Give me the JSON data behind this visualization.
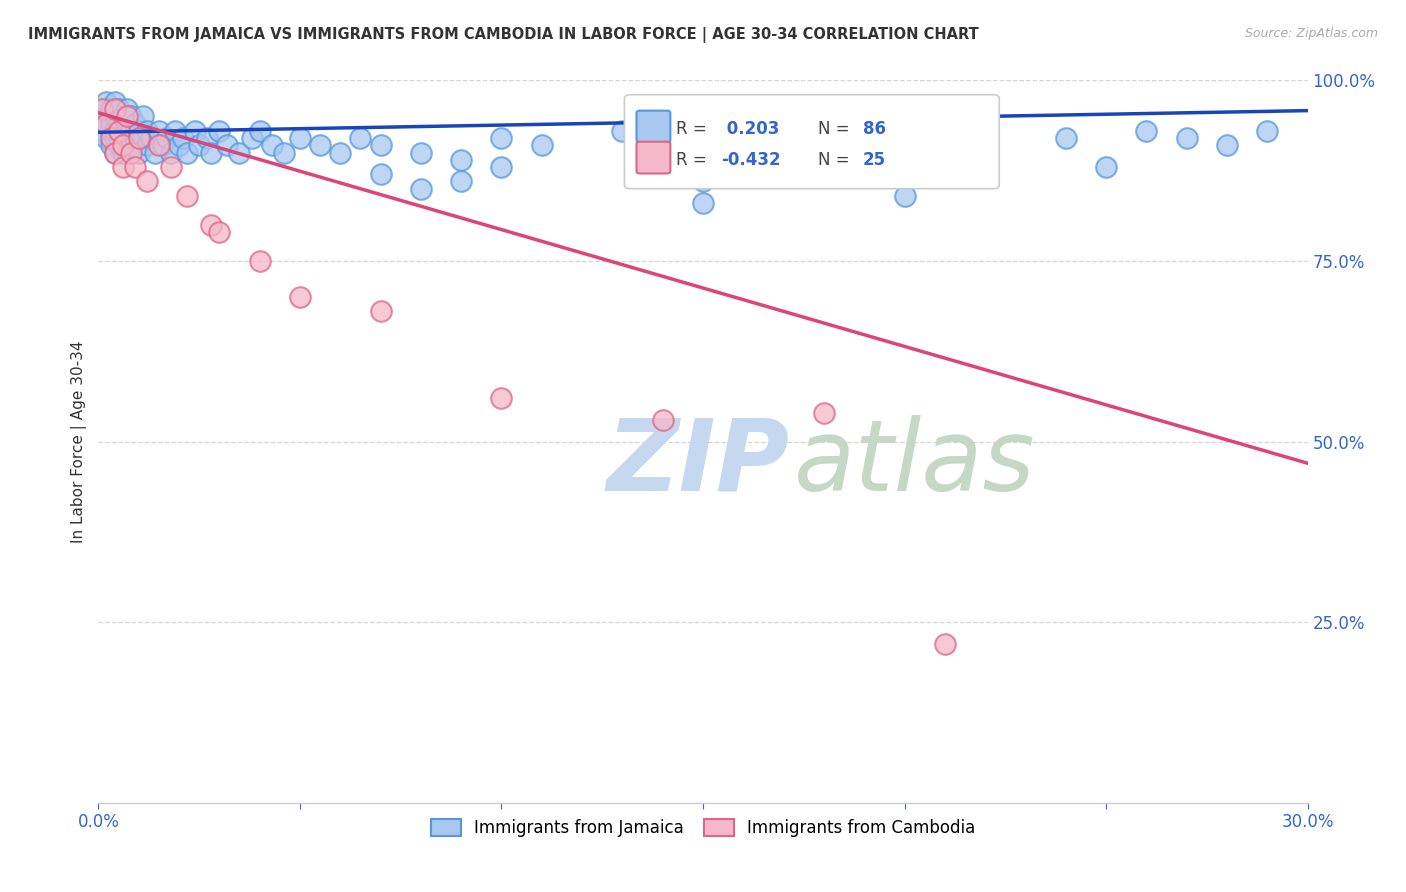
{
  "title": "IMMIGRANTS FROM JAMAICA VS IMMIGRANTS FROM CAMBODIA IN LABOR FORCE | AGE 30-34 CORRELATION CHART",
  "source": "Source: ZipAtlas.com",
  "ylabel": "In Labor Force | Age 30-34",
  "xlim": [
    0.0,
    0.3
  ],
  "ylim": [
    0.0,
    1.0
  ],
  "xtick_positions": [
    0.0,
    0.05,
    0.1,
    0.15,
    0.2,
    0.25,
    0.3
  ],
  "ytick_positions": [
    0.0,
    0.25,
    0.5,
    0.75,
    1.0
  ],
  "jamaica_color": "#a8c8f0",
  "jamaica_edge": "#5599dd",
  "cambodia_color": "#f5b8c8",
  "cambodia_edge": "#dd6688",
  "blue_line_color": "#1a44bb",
  "pink_line_color": "#dd4477",
  "tick_color": "#3366cc",
  "grid_color": "#cccccc",
  "background_color": "#ffffff",
  "blue_line_y0": 0.928,
  "blue_line_y1": 0.958,
  "pink_line_y0": 0.955,
  "pink_line_y1": 0.47,
  "jamaica_N": 86,
  "cambodia_N": 25,
  "jamaica_R": 0.203,
  "cambodia_R": -0.432,
  "watermark_zip_color": "#c5d8f0",
  "watermark_atlas_color": "#c5d8c5",
  "jamaica_x": [
    0.001,
    0.001,
    0.002,
    0.002,
    0.002,
    0.002,
    0.003,
    0.003,
    0.003,
    0.003,
    0.003,
    0.004,
    0.004,
    0.004,
    0.004,
    0.004,
    0.005,
    0.005,
    0.005,
    0.005,
    0.006,
    0.006,
    0.006,
    0.007,
    0.007,
    0.007,
    0.008,
    0.008,
    0.008,
    0.009,
    0.009,
    0.01,
    0.01,
    0.011,
    0.011,
    0.012,
    0.012,
    0.013,
    0.014,
    0.015,
    0.016,
    0.017,
    0.018,
    0.019,
    0.02,
    0.021,
    0.022,
    0.024,
    0.025,
    0.027,
    0.028,
    0.03,
    0.032,
    0.035,
    0.038,
    0.04,
    0.043,
    0.046,
    0.05,
    0.055,
    0.06,
    0.065,
    0.07,
    0.08,
    0.09,
    0.1,
    0.11,
    0.13,
    0.15,
    0.17,
    0.18,
    0.2,
    0.22,
    0.24,
    0.26,
    0.27,
    0.28,
    0.29,
    0.15,
    0.2,
    0.25,
    0.15,
    0.07,
    0.08,
    0.09,
    0.1
  ],
  "jamaica_y": [
    0.95,
    0.93,
    0.96,
    0.94,
    0.92,
    0.97,
    0.93,
    0.95,
    0.91,
    0.96,
    0.94,
    0.92,
    0.95,
    0.93,
    0.9,
    0.97,
    0.91,
    0.94,
    0.96,
    0.92,
    0.93,
    0.95,
    0.9,
    0.92,
    0.94,
    0.96,
    0.91,
    0.93,
    0.95,
    0.92,
    0.94,
    0.9,
    0.93,
    0.92,
    0.95,
    0.91,
    0.93,
    0.92,
    0.9,
    0.93,
    0.91,
    0.92,
    0.9,
    0.93,
    0.91,
    0.92,
    0.9,
    0.93,
    0.91,
    0.92,
    0.9,
    0.93,
    0.91,
    0.9,
    0.92,
    0.93,
    0.91,
    0.9,
    0.92,
    0.91,
    0.9,
    0.92,
    0.91,
    0.9,
    0.89,
    0.92,
    0.91,
    0.93,
    0.9,
    0.91,
    0.92,
    0.93,
    0.91,
    0.92,
    0.93,
    0.92,
    0.91,
    0.93,
    0.86,
    0.84,
    0.88,
    0.83,
    0.87,
    0.85,
    0.86,
    0.88
  ],
  "cambodia_x": [
    0.001,
    0.002,
    0.003,
    0.004,
    0.004,
    0.005,
    0.006,
    0.006,
    0.007,
    0.008,
    0.009,
    0.01,
    0.012,
    0.015,
    0.018,
    0.022,
    0.028,
    0.03,
    0.04,
    0.05,
    0.07,
    0.1,
    0.14,
    0.18,
    0.21
  ],
  "cambodia_y": [
    0.96,
    0.94,
    0.92,
    0.96,
    0.9,
    0.93,
    0.91,
    0.88,
    0.95,
    0.9,
    0.88,
    0.92,
    0.86,
    0.91,
    0.88,
    0.84,
    0.8,
    0.79,
    0.75,
    0.7,
    0.68,
    0.56,
    0.53,
    0.54,
    0.22
  ]
}
